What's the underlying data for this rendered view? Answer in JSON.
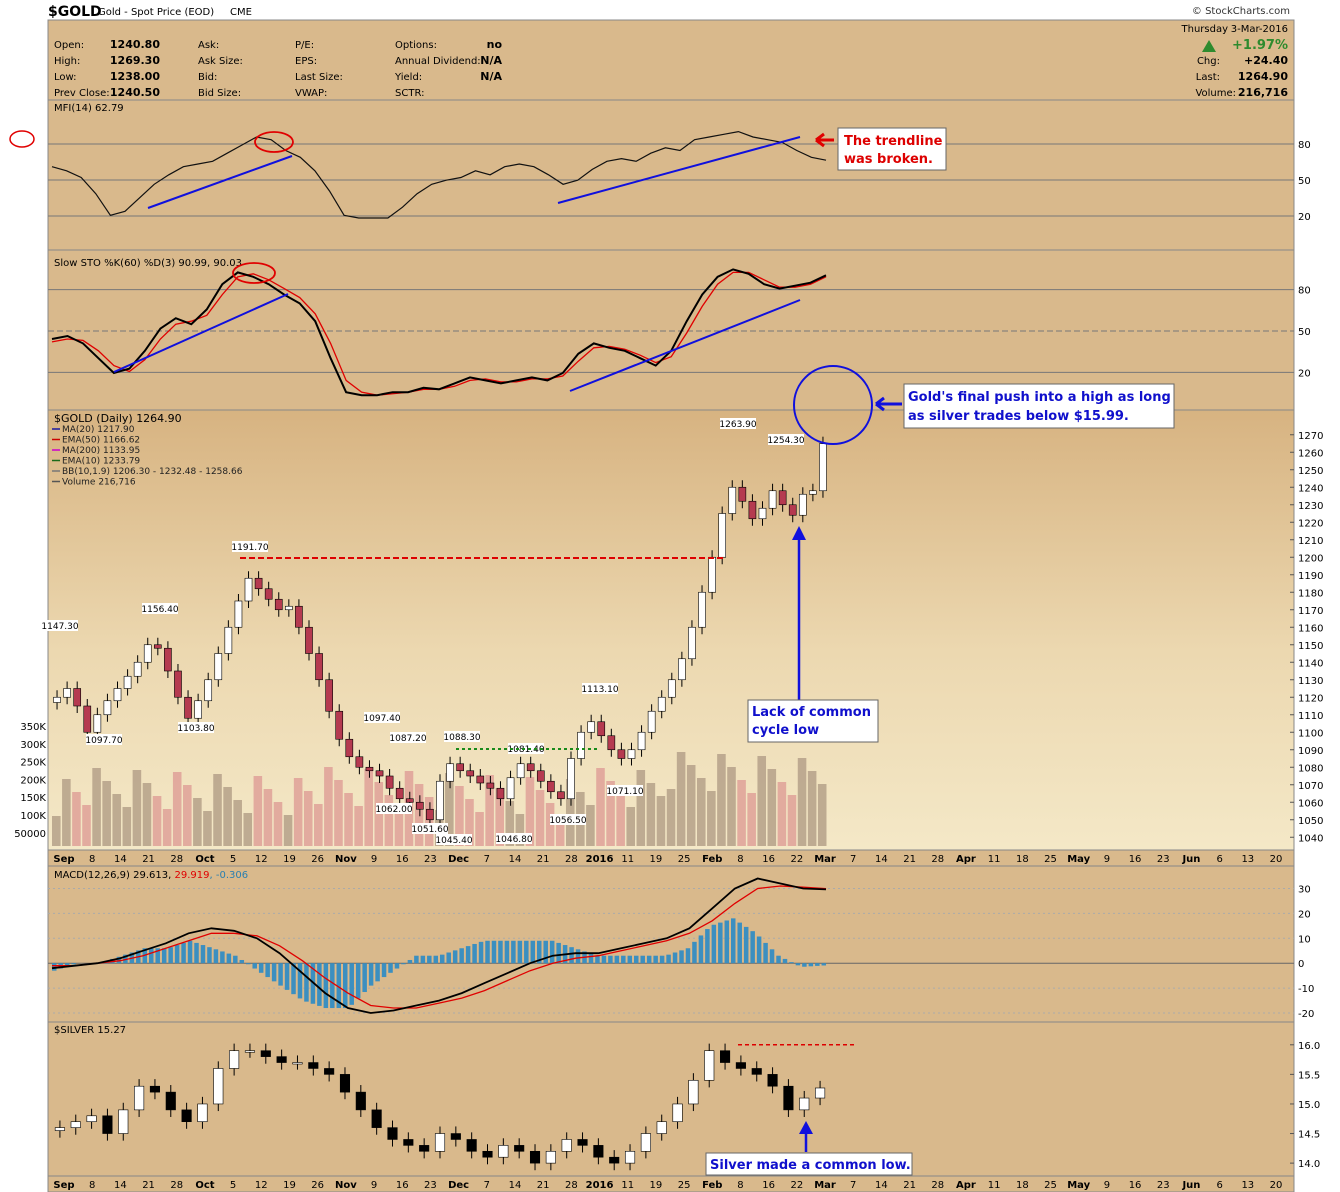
{
  "header": {
    "symbol": "$GOLD",
    "name": "Gold - Spot Price (EOD)",
    "exchange": "CME",
    "credit": "© StockCharts.com",
    "date_dow": "Thursday",
    "date": "3-Mar-2016",
    "pct_change": "+1.97%",
    "chg_label": "Chg:",
    "chg": "+24.40",
    "last_label": "Last:",
    "last": "1264.90",
    "volume_label": "Volume:",
    "volume": "216,716"
  },
  "quote": {
    "col1": [
      [
        "Open:",
        "1240.80"
      ],
      [
        "High:",
        "1269.30"
      ],
      [
        "Low:",
        "1238.00"
      ],
      [
        "Prev Close:",
        "1240.50"
      ]
    ],
    "col2": [
      [
        "Ask:",
        ""
      ],
      [
        "Ask Size:",
        ""
      ],
      [
        "Bid:",
        ""
      ],
      [
        "Bid Size:",
        ""
      ]
    ],
    "col3": [
      [
        "P/E:",
        ""
      ],
      [
        "EPS:",
        ""
      ],
      [
        "Last Size:",
        ""
      ],
      [
        "VWAP:",
        ""
      ]
    ],
    "col4": [
      [
        "Options:",
        "no"
      ],
      [
        "Annual Dividend:",
        "N/A"
      ],
      [
        "Yield:",
        "N/A"
      ],
      [
        "SCTR:",
        ""
      ]
    ]
  },
  "panels": {
    "mfi": "MFI(14) 62.79",
    "sto": "Slow STO %K(60) %D(3) 90.99, 90.03",
    "main": "$GOLD (Daily) 1264.90",
    "macd_a": "MACD(12,26,9) 29.613, ",
    "macd_b": "29.919",
    "macd_c": ", -0.306",
    "silver": "$SILVER 15.27"
  },
  "legend": [
    {
      "text": "MA(20) 1217.90",
      "color": "#1a1aa0"
    },
    {
      "text": "EMA(50) 1166.62",
      "color": "#cc0000"
    },
    {
      "text": "MA(200) 1133.95",
      "color": "#cc00cc"
    },
    {
      "text": "EMA(10) 1233.79",
      "color": "#1a6a1a"
    },
    {
      "text": "BB(10,1.9) 1206.30 - 1232.48 - 1258.66",
      "color": "#777777"
    },
    {
      "text": "Volume 216,716",
      "color": "#555555"
    }
  ],
  "annotations": {
    "trendline_broken": [
      "The trendline",
      "was broken."
    ],
    "final_push": [
      "Gold's final push into a high as long",
      "as silver trades below $15.99."
    ],
    "lack_low": [
      "Lack of common",
      "cycle low"
    ],
    "silver_low": "Silver made a common low."
  },
  "colors": {
    "panel_bg": "#d9b98c",
    "up_candle": "#ffffff",
    "down_candle": "#b53a50",
    "annotation_blue": "#1010cc",
    "annotation_red": "#dd0000"
  },
  "chart_data": [
    {
      "type": "candlestick",
      "title": "$GOLD (Daily) 1264.90",
      "x_ticks": [
        "Sep",
        "8",
        "14",
        "21",
        "28",
        "Oct",
        "5",
        "12",
        "19",
        "26",
        "Nov",
        "9",
        "16",
        "23",
        "Dec",
        "7",
        "14",
        "21",
        "28",
        "2016",
        "11",
        "19",
        "25",
        "Feb",
        "8",
        "16",
        "22",
        "Mar",
        "7",
        "14",
        "21",
        "28",
        "Apr",
        "11",
        "18",
        "25",
        "May",
        "9",
        "16",
        "23",
        "Jun",
        "6",
        "13",
        "20"
      ],
      "y_ticks": [
        1040,
        1050,
        1060,
        1070,
        1080,
        1090,
        1100,
        1110,
        1120,
        1130,
        1140,
        1150,
        1160,
        1170,
        1180,
        1190,
        1200,
        1210,
        1220,
        1230,
        1240,
        1250,
        1260,
        1270
      ],
      "ylim": [
        1035,
        1275
      ],
      "volume_ticks": [
        "350K",
        "300K",
        "250K",
        "200K",
        "150K",
        "100K",
        "50000"
      ],
      "price_labels": [
        [
          "1147.30"
        ],
        [
          "1097.70"
        ],
        [
          "1156.40"
        ],
        [
          "1103.80"
        ],
        [
          "1191.70"
        ],
        [
          "1097.40"
        ],
        [
          "1087.20"
        ],
        [
          "1062.00"
        ],
        [
          "1088.30"
        ],
        [
          "1051.60"
        ],
        [
          "1045.40"
        ],
        [
          "1081.40"
        ],
        [
          "1046.80"
        ],
        [
          "1056.50"
        ],
        [
          "1113.10"
        ],
        [
          "1071.10"
        ],
        [
          "1263.90"
        ],
        [
          "1254.30"
        ]
      ],
      "close_series": [
        1120,
        1125,
        1115,
        1100,
        1110,
        1118,
        1125,
        1132,
        1140,
        1150,
        1148,
        1135,
        1120,
        1108,
        1118,
        1130,
        1145,
        1160,
        1175,
        1188,
        1182,
        1176,
        1170,
        1172,
        1160,
        1145,
        1130,
        1112,
        1096,
        1086,
        1080,
        1078,
        1075,
        1068,
        1062,
        1060,
        1056,
        1050,
        1072,
        1082,
        1078,
        1075,
        1071,
        1068,
        1062,
        1074,
        1082,
        1078,
        1072,
        1066,
        1062,
        1085,
        1100,
        1106,
        1098,
        1090,
        1085,
        1090,
        1100,
        1112,
        1120,
        1130,
        1142,
        1160,
        1180,
        1200,
        1225,
        1240,
        1232,
        1222,
        1228,
        1238,
        1230,
        1224,
        1236,
        1238,
        1264.9
      ]
    },
    {
      "type": "line",
      "title": "MFI(14) 62.79",
      "y_ticks": [
        20,
        50,
        80
      ],
      "values": [
        58,
        55,
        50,
        38,
        22,
        25,
        35,
        45,
        52,
        58,
        60,
        62,
        68,
        74,
        80,
        78,
        70,
        65,
        55,
        40,
        22,
        20,
        20,
        20,
        28,
        38,
        45,
        48,
        50,
        55,
        52,
        58,
        60,
        58,
        52,
        45,
        48,
        56,
        62,
        64,
        62,
        68,
        72,
        70,
        78,
        80,
        82,
        84,
        80,
        78,
        76,
        70,
        65,
        62.79
      ]
    },
    {
      "type": "line",
      "title": "Slow STO %K(60) %D(3) 90.99, 90.03",
      "y_ticks": [
        20,
        50,
        80
      ],
      "series": [
        {
          "name": "%K",
          "values": [
            48,
            50,
            45,
            35,
            25,
            28,
            40,
            55,
            62,
            58,
            68,
            85,
            93,
            90,
            85,
            78,
            72,
            60,
            35,
            12,
            10,
            10,
            12,
            12,
            15,
            14,
            18,
            22,
            20,
            18,
            20,
            22,
            20,
            25,
            38,
            45,
            42,
            40,
            35,
            30,
            40,
            60,
            78,
            90,
            95,
            92,
            85,
            82,
            84,
            86,
            90.99
          ]
        },
        {
          "name": "%D",
          "values": [
            46,
            48,
            47,
            40,
            30,
            26,
            34,
            48,
            58,
            60,
            64,
            78,
            90,
            92,
            88,
            82,
            76,
            65,
            45,
            20,
            12,
            10,
            11,
            12,
            14,
            14,
            16,
            20,
            21,
            19,
            19,
            21,
            21,
            23,
            33,
            42,
            43,
            41,
            37,
            32,
            36,
            52,
            70,
            85,
            93,
            93,
            88,
            83,
            83,
            85,
            90.03
          ]
        }
      ]
    },
    {
      "type": "line",
      "title": "MACD(12,26,9) 29.613, 29.919, -0.306",
      "y_ticks": [
        -20,
        -10,
        0,
        10,
        20,
        30
      ],
      "series": [
        {
          "name": "MACD",
          "values": [
            -2,
            -1,
            0,
            2,
            5,
            8,
            12,
            14,
            13,
            10,
            4,
            -4,
            -12,
            -18,
            -20,
            -19,
            -17,
            -15,
            -12,
            -8,
            -4,
            0,
            3,
            4,
            4,
            6,
            8,
            10,
            14,
            22,
            30,
            34,
            32,
            30,
            29.613
          ]
        },
        {
          "name": "Signal",
          "values": [
            -1,
            -1,
            0,
            1,
            3,
            6,
            9,
            12,
            12,
            11,
            7,
            1,
            -6,
            -12,
            -17,
            -18,
            -18,
            -16,
            -14,
            -11,
            -7,
            -3,
            0,
            2,
            3,
            5,
            7,
            9,
            12,
            17,
            24,
            30,
            31,
            30.5,
            29.919
          ]
        }
      ]
    },
    {
      "type": "candlestick",
      "title": "$SILVER 15.27",
      "y_ticks": [
        14.0,
        14.5,
        15.0,
        15.5,
        16.0
      ],
      "close_series": [
        14.6,
        14.7,
        14.8,
        14.5,
        14.9,
        15.3,
        15.2,
        14.9,
        14.7,
        15.0,
        15.6,
        15.9,
        15.9,
        15.8,
        15.7,
        15.7,
        15.6,
        15.5,
        15.2,
        14.9,
        14.6,
        14.4,
        14.3,
        14.2,
        14.5,
        14.4,
        14.2,
        14.1,
        14.3,
        14.2,
        14.0,
        14.2,
        14.4,
        14.3,
        14.1,
        14.0,
        14.2,
        14.5,
        14.7,
        15.0,
        15.4,
        15.9,
        15.7,
        15.6,
        15.5,
        15.3,
        14.9,
        15.1,
        15.27
      ],
      "reference_line": 16.0
    }
  ]
}
